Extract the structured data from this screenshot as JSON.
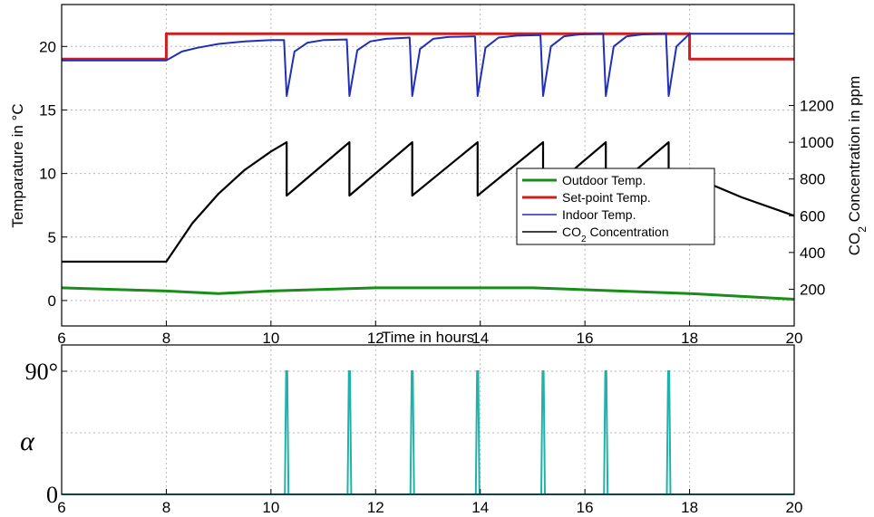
{
  "chart_data": [
    {
      "type": "line",
      "xlabel": "Time in hours",
      "ylabel": "Temparature in °C",
      "y2label": "CO2 Concentration in ppm",
      "xlim": [
        6,
        20
      ],
      "ylim": [
        -2,
        23.3
      ],
      "y2lim": [
        0,
        1750
      ],
      "x_ticks": [
        6,
        8,
        10,
        12,
        14,
        16,
        18,
        20
      ],
      "y_ticks": [
        0,
        5,
        10,
        15,
        20
      ],
      "y2_ticks": [
        200,
        400,
        600,
        800,
        1000,
        1200
      ],
      "grid": true,
      "legend_position": "center-right",
      "legend_co2_prefix": "CO",
      "legend_co2_sub": "2",
      "legend_co2_suffix": " Concentration",
      "series": [
        {
          "name": "Outdoor Temp.",
          "color": "#1a8c1a",
          "axis": "left",
          "x": [
            6,
            8,
            9,
            10,
            12,
            14,
            15,
            16,
            18,
            20
          ],
          "y": [
            1.0,
            0.75,
            0.55,
            0.75,
            1.0,
            1.0,
            1.0,
            0.85,
            0.55,
            0.1
          ]
        },
        {
          "name": "Set-point Temp.",
          "color": "#cc1f1f",
          "axis": "left",
          "x": [
            6,
            8,
            8,
            18,
            18,
            20
          ],
          "y": [
            19.0,
            19.0,
            21.0,
            21.0,
            19.0,
            19.0
          ]
        },
        {
          "name": "Indoor Temp.",
          "color": "#1f2fb8",
          "axis": "left",
          "x": [
            6,
            8,
            8.3,
            8.6,
            9,
            9.5,
            10,
            10.25,
            10.3,
            10.45,
            10.7,
            11,
            11.45,
            11.5,
            11.65,
            11.9,
            12.2,
            12.65,
            12.7,
            12.85,
            13.1,
            13.4,
            13.9,
            13.95,
            14.1,
            14.35,
            14.7,
            15.15,
            15.2,
            15.35,
            15.6,
            15.9,
            16.35,
            16.4,
            16.55,
            16.8,
            17.1,
            17.55,
            17.6,
            17.75,
            18,
            20
          ],
          "y": [
            18.9,
            18.9,
            19.6,
            19.9,
            20.2,
            20.4,
            20.5,
            20.5,
            16.1,
            19.6,
            20.3,
            20.5,
            20.55,
            16.1,
            19.7,
            20.4,
            20.6,
            20.7,
            16.1,
            19.8,
            20.6,
            20.75,
            20.8,
            16.1,
            19.9,
            20.7,
            20.85,
            20.9,
            16.1,
            20.0,
            20.8,
            20.95,
            21.0,
            16.1,
            20.0,
            20.8,
            20.95,
            21.0,
            16.1,
            20.0,
            21.0,
            21.0
          ]
        },
        {
          "name": "CO2 Concentration",
          "color": "#000000",
          "axis": "right",
          "x": [
            6,
            8,
            8.5,
            9,
            9.5,
            10,
            10.3,
            10.3,
            11.5,
            11.5,
            12.7,
            12.7,
            13.95,
            13.95,
            15.2,
            15.2,
            16.4,
            16.4,
            17.6,
            17.6,
            18,
            19,
            20
          ],
          "y": [
            350,
            350,
            560,
            720,
            850,
            950,
            1000,
            710,
            1000,
            710,
            1000,
            710,
            1000,
            710,
            1000,
            710,
            1000,
            710,
            1000,
            710,
            820,
            700,
            600
          ]
        }
      ]
    },
    {
      "type": "line",
      "xlabel": "",
      "ylabel": "α",
      "xlim": [
        6,
        20
      ],
      "ylim": [
        0,
        90
      ],
      "x_ticks": [
        6,
        8,
        10,
        12,
        14,
        16,
        18,
        20
      ],
      "y_ticks": [
        0,
        90
      ],
      "y_tick_labels": [
        "0",
        "90°"
      ],
      "grid": true,
      "pulse_color": "#20b2aa",
      "pulse_width_hours": 0.07,
      "pulse_height": 90,
      "pulses_at": [
        10.3,
        11.5,
        12.7,
        13.95,
        15.2,
        16.4,
        17.6
      ]
    }
  ]
}
